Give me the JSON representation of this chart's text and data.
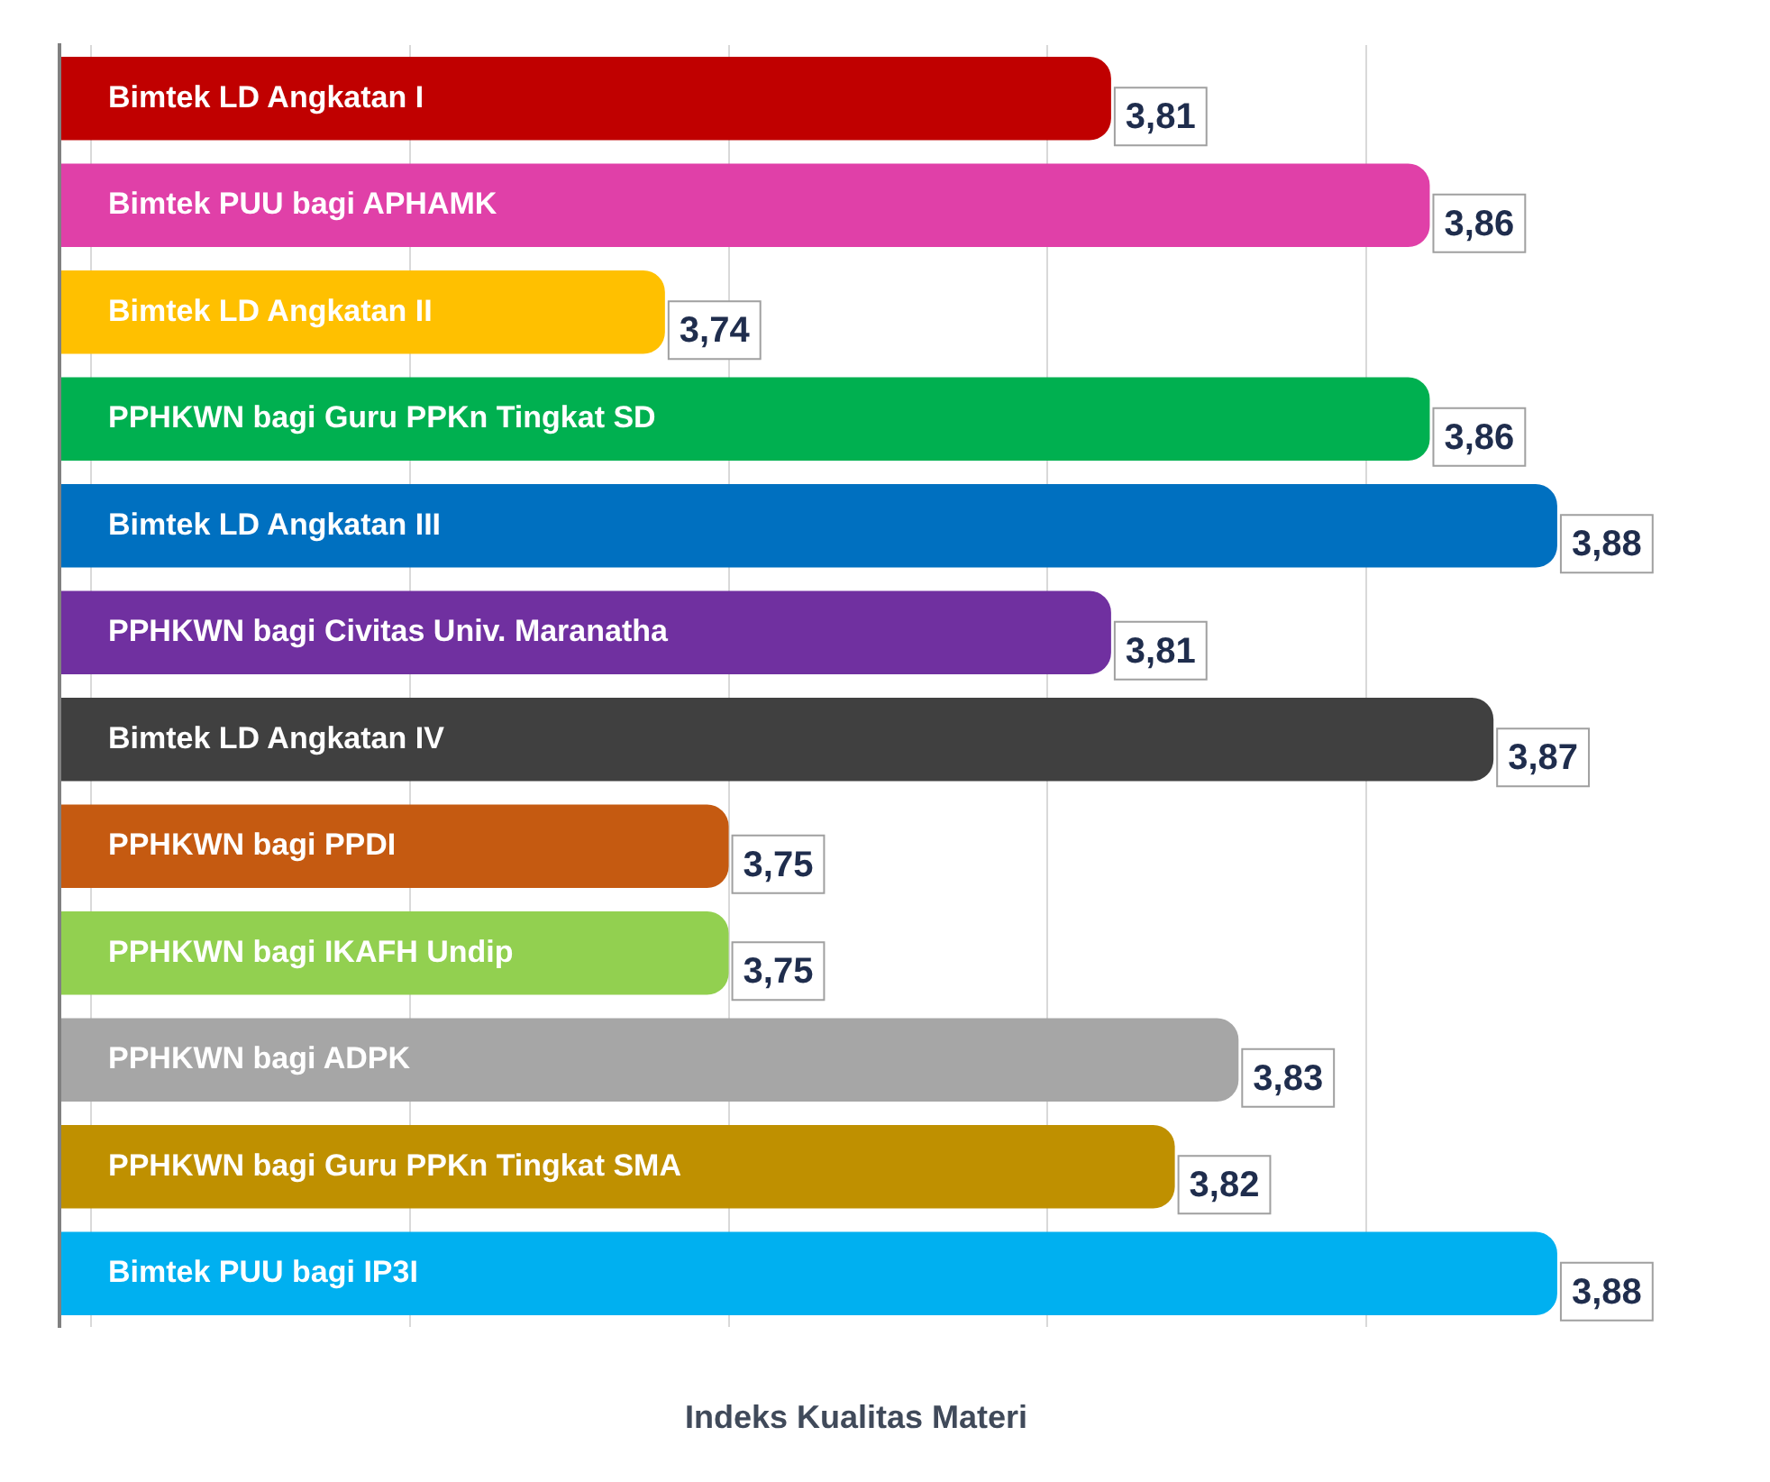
{
  "chart_data": {
    "type": "bar",
    "orientation": "horizontal",
    "xlabel": "Indeks Kualitas Materi",
    "categories": [
      "Bimtek LD Angkatan I",
      "Bimtek PUU bagi APHAMK",
      "Bimtek LD Angkatan II",
      "PPHKWN bagi Guru PPKn Tingkat SD",
      "Bimtek LD Angkatan III",
      "PPHKWN bagi Civitas Univ. Maranatha",
      "Bimtek LD Angkatan IV",
      "PPHKWN bagi PPDI",
      "PPHKWN bagi IKAFH Undip",
      "PPHKWN bagi ADPK",
      "PPHKWN bagi Guru PPKn Tingkat SMA",
      "Bimtek PUU bagi IP3I"
    ],
    "values": [
      3.81,
      3.86,
      3.74,
      3.86,
      3.88,
      3.81,
      3.87,
      3.75,
      3.75,
      3.83,
      3.82,
      3.88
    ],
    "value_labels": [
      "3,81",
      "3,86",
      "3,74",
      "3,86",
      "3,88",
      "3,81",
      "3,87",
      "3,75",
      "3,75",
      "3,83",
      "3,82",
      "3,88"
    ],
    "colors": [
      "#c00000",
      "#e040a8",
      "#ffc000",
      "#00b050",
      "#0070c0",
      "#7030a0",
      "#404040",
      "#c55a11",
      "#92d050",
      "#a6a6a6",
      "#bf9000",
      "#00b0f0"
    ],
    "xlim": [
      3.645,
      3.895
    ],
    "xticks": [
      {
        "value": 3.65,
        "label": null
      },
      {
        "value": 3.7,
        "label": null
      },
      {
        "value": 3.75,
        "label": null
      },
      {
        "value": 3.8,
        "label": null
      },
      {
        "value": 3.85,
        "label": null
      }
    ],
    "grid": "x",
    "legend": false
  }
}
